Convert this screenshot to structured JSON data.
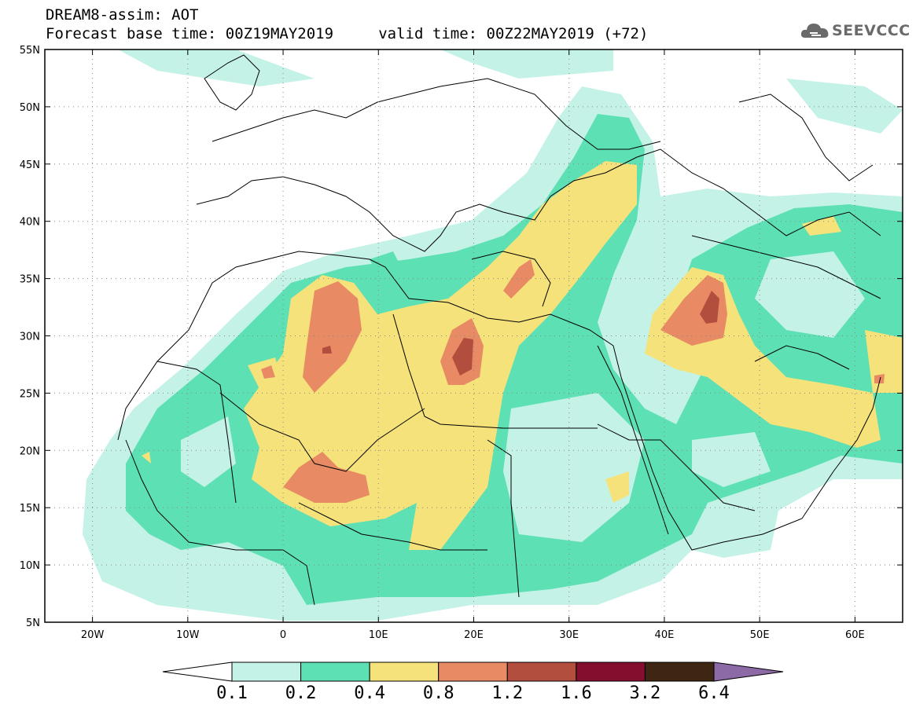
{
  "title": {
    "line1": "DREAM8-assim: AOT",
    "line2": "Forecast base time: 00Z19MAY2019     valid time: 00Z22MAY2019 (+72)"
  },
  "logo": {
    "text": "SEEVCCC",
    "icon": "cloud-icon"
  },
  "map": {
    "lat_ticks": [
      "55N",
      "50N",
      "45N",
      "40N",
      "35N",
      "30N",
      "25N",
      "20N",
      "15N",
      "10N",
      "5N"
    ],
    "lon_ticks": [
      "20W",
      "10W",
      "0",
      "10E",
      "20E",
      "30E",
      "40E",
      "50E",
      "60E"
    ],
    "lat_range": [
      5,
      55
    ],
    "lon_range": [
      -25,
      65
    ],
    "grid": "dotted"
  },
  "colorbar": {
    "labels": [
      "0.1",
      "0.2",
      "0.4",
      "0.8",
      "1.2",
      "1.6",
      "3.2",
      "6.4"
    ],
    "colors": [
      "#ffffff",
      "#c5f2e7",
      "#5ee0b5",
      "#f5e27a",
      "#e88a64",
      "#b24e3e",
      "#840e2e",
      "#3e2612",
      "#8c6aa6"
    ]
  }
}
